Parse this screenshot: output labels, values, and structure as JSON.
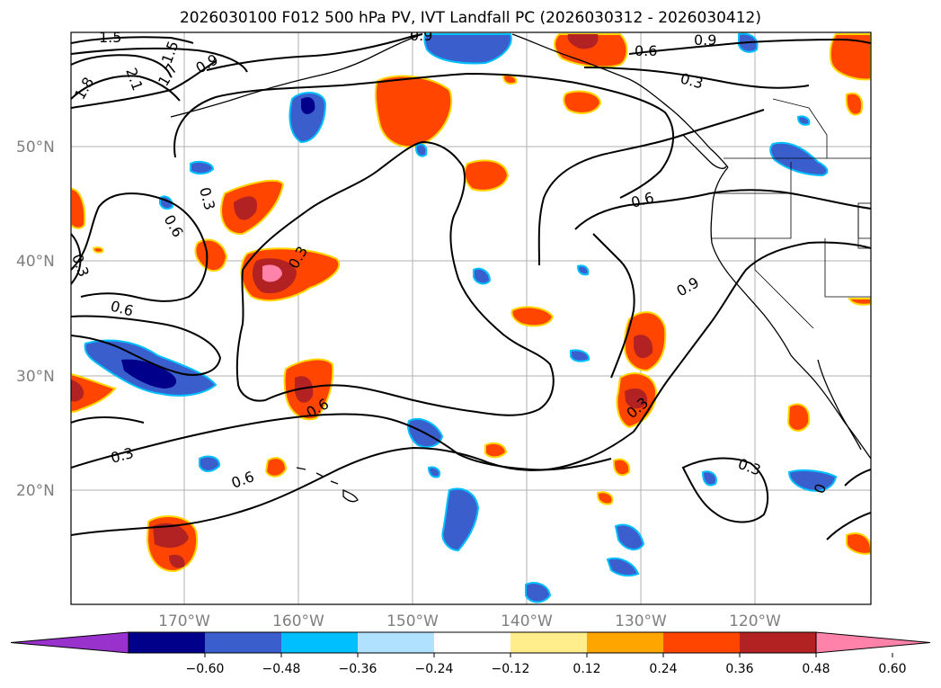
{
  "title": "2026030100 F012 500 hPa PV, IVT Landfall PC (2026030312 - 2026030412)",
  "lat_labels": [
    "50°N",
    "40°N",
    "30°N",
    "20°N"
  ],
  "lon_labels": [
    "170°W",
    "160°W",
    "150°W",
    "140°W",
    "130°W",
    "120°W"
  ],
  "colorbar": {
    "ticks": [
      "−0.60",
      "−0.48",
      "−0.36",
      "−0.24",
      "−0.12",
      "0.12",
      "0.24",
      "0.36",
      "0.48",
      "0.60"
    ],
    "colors": [
      "#9932cc",
      "#00008b",
      "#3a5fcd",
      "#00bfff",
      "#b0e2ff",
      "#ffffff",
      "#ffec8b",
      "#ffa500",
      "#ff4500",
      "#b22222",
      "#ff82ab"
    ]
  },
  "contour_labels": [
    "1.5",
    "2.1",
    "1.8",
    "1.5",
    "1.7",
    "0.9",
    "0.9",
    "0.6",
    "0.9",
    "0.3",
    "0.3",
    "0.6",
    "0.3",
    "0.6",
    "0.3",
    "0.6",
    "0.6",
    "0.9",
    "0.3",
    "0.3",
    "0.6",
    "0.3",
    "0"
  ],
  "colors": {
    "border": "#000000",
    "grid": "#b0b0b0",
    "label": "#7f7f7f"
  }
}
